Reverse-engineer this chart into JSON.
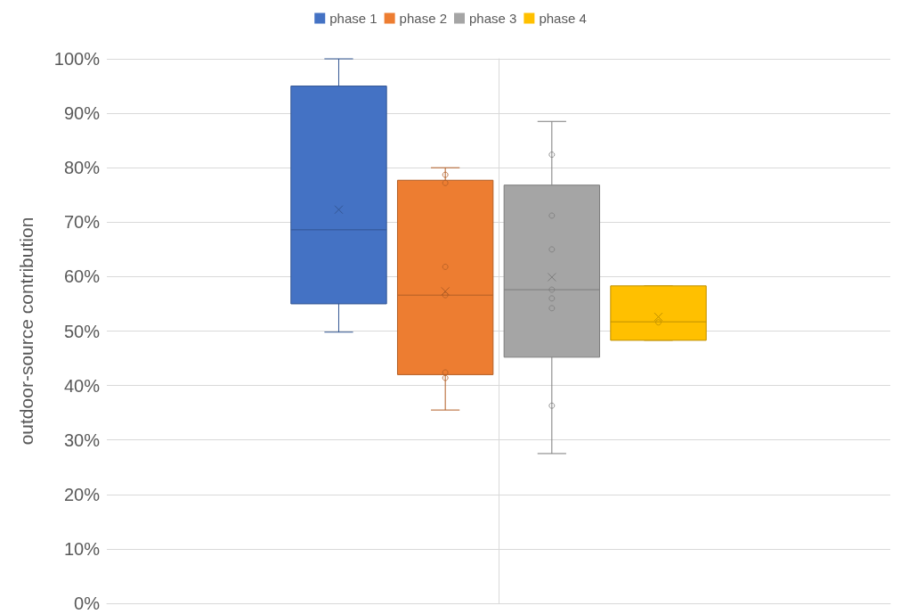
{
  "chart_data": {
    "type": "box",
    "ylabel": "outdoor-source contribution",
    "categories": [
      null
    ],
    "ylim": [
      0,
      100
    ],
    "yticks": [
      {
        "value": 0,
        "label": "0%"
      },
      {
        "value": 10,
        "label": "10%"
      },
      {
        "value": 20,
        "label": "20%"
      },
      {
        "value": 30,
        "label": "30%"
      },
      {
        "value": 40,
        "label": "40%"
      },
      {
        "value": 50,
        "label": "50%"
      },
      {
        "value": 60,
        "label": "60%"
      },
      {
        "value": 70,
        "label": "70%"
      },
      {
        "value": 80,
        "label": "80%"
      },
      {
        "value": 90,
        "label": "90%"
      },
      {
        "value": 100,
        "label": "100%"
      }
    ],
    "grid": "y",
    "legend": "top",
    "series": [
      {
        "name": "phase 1",
        "color": "#4472c4",
        "boxes": [
          {
            "low": 49.8,
            "q1": 55,
            "median": 68.6,
            "q3": 95,
            "high": 100,
            "mean": 72.3
          }
        ]
      },
      {
        "name": "phase 2",
        "color": "#ed7d31",
        "boxes": [
          {
            "low": 35.5,
            "q1": 42,
            "median": 56.6,
            "q3": 77.7,
            "high": 80,
            "mean": 57.3,
            "outliers": [
              78.7,
              77.2,
              61.8,
              56.6,
              42.4,
              41.4
            ]
          }
        ]
      },
      {
        "name": "phase 3",
        "color": "#a5a5a5",
        "boxes": [
          {
            "low": 27.5,
            "q1": 45.2,
            "median": 57.6,
            "q3": 76.8,
            "high": 88.5,
            "mean": 59.9,
            "outliers": [
              82.4,
              71.2,
              65,
              57.6,
              56,
              54.2,
              36.3
            ]
          }
        ]
      },
      {
        "name": "phase 4",
        "color": "#ffc000",
        "boxes": [
          {
            "low": 48.3,
            "q1": 48.3,
            "median": 51.7,
            "q3": 58.3,
            "high": 58.3,
            "mean": 52.6,
            "outliers": [
              51.6
            ]
          }
        ]
      }
    ]
  }
}
